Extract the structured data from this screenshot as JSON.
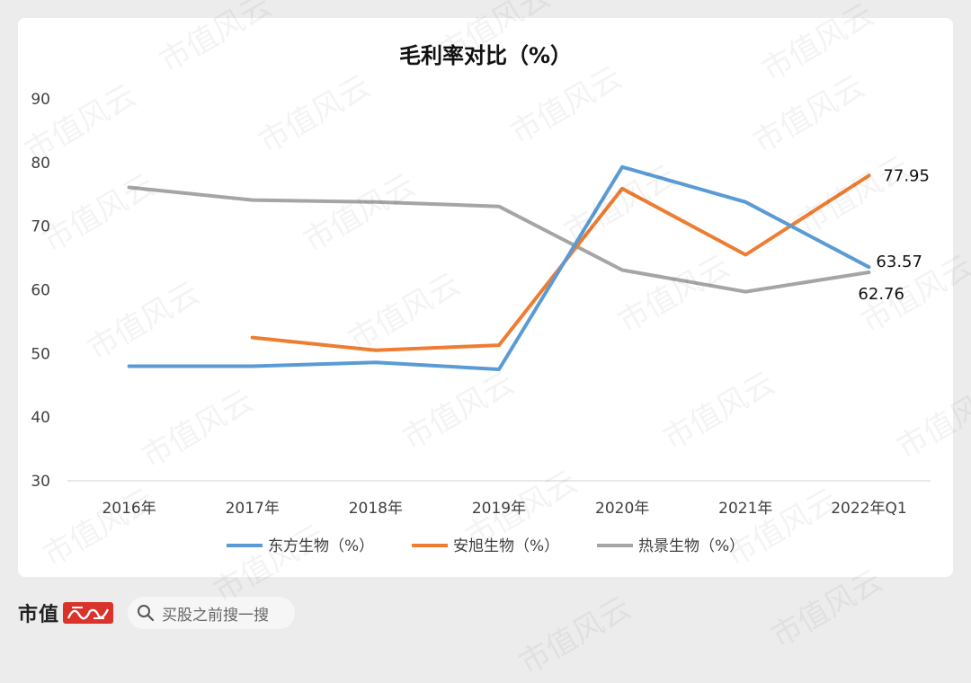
{
  "chart_data": {
    "type": "line",
    "title": "毛利率对比（%）",
    "categories": [
      "2016年",
      "2017年",
      "2018年",
      "2019年",
      "2020年",
      "2021年",
      "2022年Q1"
    ],
    "ylim": [
      30,
      90
    ],
    "yticks": [
      30,
      40,
      50,
      60,
      70,
      80,
      90
    ],
    "grid": false,
    "legend_position": "bottom",
    "series": [
      {
        "name": "东方生物（%）",
        "color": "#5b9bd5",
        "values": [
          48.0,
          48.0,
          48.6,
          47.5,
          79.3,
          73.8,
          63.57
        ]
      },
      {
        "name": "安旭生物（%）",
        "color": "#ed7d31",
        "values": [
          null,
          52.5,
          50.5,
          51.3,
          75.9,
          65.5,
          77.95
        ]
      },
      {
        "name": "热景生物（%）",
        "color": "#a5a5a5",
        "values": [
          76.1,
          74.1,
          73.8,
          73.1,
          63.1,
          59.7,
          62.76
        ]
      }
    ],
    "data_labels": [
      {
        "series": 1,
        "index": 6,
        "text": "77.95"
      },
      {
        "series": 0,
        "index": 6,
        "text": "63.57"
      },
      {
        "series": 2,
        "index": 6,
        "text": "62.76"
      }
    ]
  },
  "footer": {
    "brand": "市值",
    "search_placeholder": "买股之前搜一搜"
  },
  "watermark": "市值风云"
}
